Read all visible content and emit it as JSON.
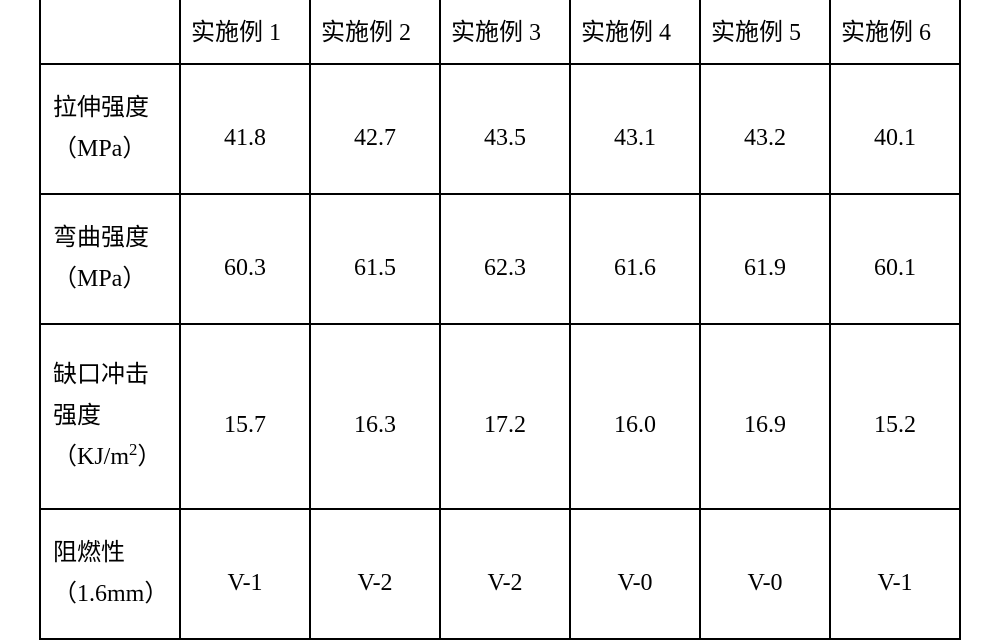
{
  "table": {
    "columns": [
      "实施例 1",
      "实施例 2",
      "实施例 3",
      "实施例 4",
      "实施例 5",
      "实施例 6"
    ],
    "rows": [
      {
        "label_line1": "拉伸强度",
        "label_line2": "（MPa）",
        "values": [
          "41.8",
          "42.7",
          "43.5",
          "43.1",
          "43.2",
          "40.1"
        ]
      },
      {
        "label_line1": "弯曲强度",
        "label_line2": "（MPa）",
        "values": [
          "60.3",
          "61.5",
          "62.3",
          "61.6",
          "61.9",
          "60.1"
        ]
      },
      {
        "label_line1": "缺口冲击",
        "label_line2": "强度",
        "label_line3_pre": "（KJ/m",
        "label_line3_sup": "2",
        "label_line3_post": "）",
        "values": [
          "15.7",
          "16.3",
          "17.2",
          "16.0",
          "16.9",
          "15.2"
        ]
      },
      {
        "label_line1": "阻燃性",
        "label_line2": "（1.6mm）",
        "values": [
          "V-1",
          "V-2",
          "V-2",
          "V-0",
          "V-0",
          "V-1"
        ]
      }
    ]
  }
}
